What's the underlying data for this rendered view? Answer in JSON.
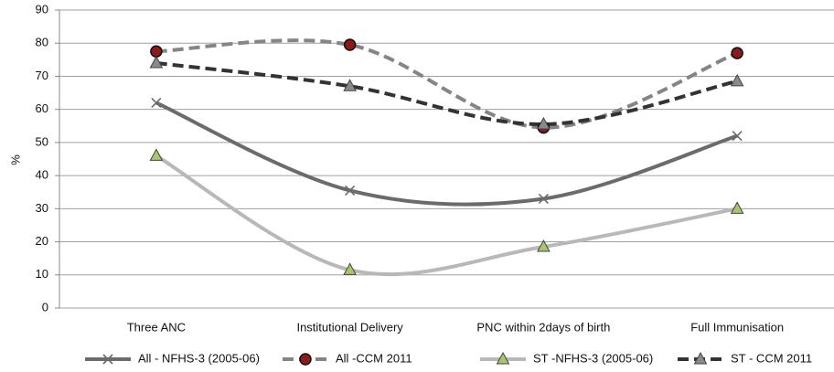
{
  "chart_data": {
    "type": "line",
    "y_label": "%",
    "categories": [
      "Three ANC",
      "Institutional Delivery",
      "PNC within 2days of birth",
      "Full Immunisation"
    ],
    "series": [
      {
        "name": "All - NFHS-3 (2005-06)",
        "color": "#6b6b6b",
        "dash": "solid",
        "marker": "x",
        "marker_color": "#6b6b6b",
        "values": [
          62,
          35.5,
          33,
          52
        ]
      },
      {
        "name": "All -CCM 2011",
        "color": "#858585",
        "dash": "dashed",
        "marker": "circle",
        "marker_color": "#8b1a1a",
        "values": [
          77.5,
          79.5,
          54.5,
          77
        ]
      },
      {
        "name": "ST -NFHS-3 (2005-06)",
        "color": "#b8b8b8",
        "dash": "solid",
        "marker": "triangle",
        "marker_color": "#a8c66c",
        "values": [
          46,
          11.5,
          18.5,
          30
        ]
      },
      {
        "name": "ST - CCM 2011",
        "color": "#333333",
        "dash": "dashed",
        "marker": "triangle",
        "marker_color": "#8a8a8a",
        "values": [
          74,
          67,
          55.5,
          68.5
        ]
      }
    ],
    "smooth": true,
    "ylim": [
      0,
      90
    ],
    "yticks": [
      0,
      10,
      20,
      30,
      40,
      50,
      60,
      70,
      80,
      90
    ],
    "grid": true,
    "legend": "bottom"
  }
}
